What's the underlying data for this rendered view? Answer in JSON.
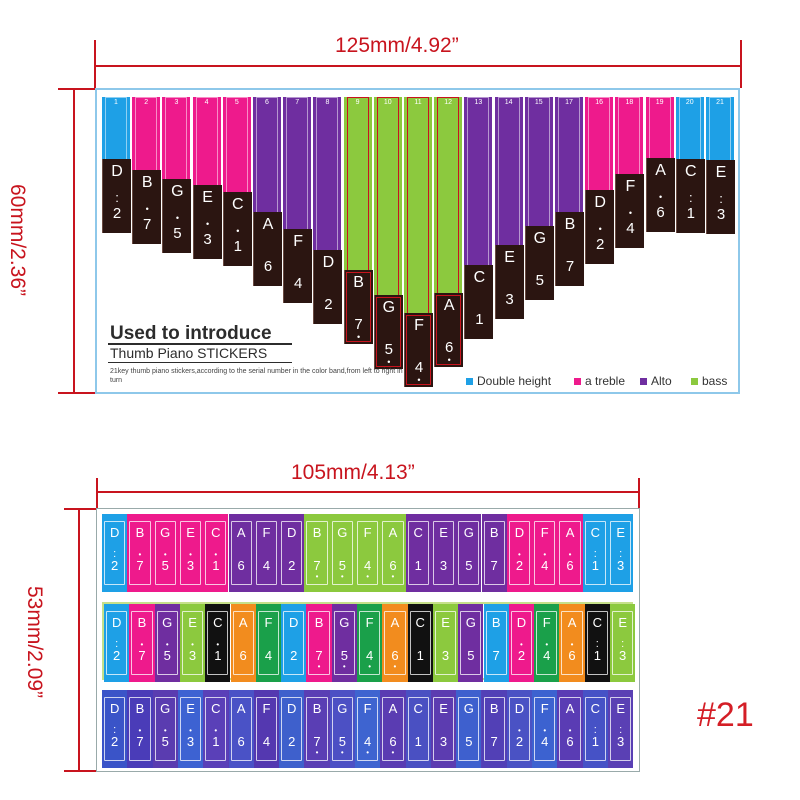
{
  "dimensions": {
    "top_width": "125mm/4.92”",
    "top_height": "60mm/2.36”",
    "bottom_width": "105mm/4.13”",
    "bottom_height": "53mm/2.09”"
  },
  "colors": {
    "double_height": "#1ea0e6",
    "treble": "#ee1a8c",
    "alto": "#6f2ea0",
    "bass": "#8cc93e",
    "dimension": "#c8141e"
  },
  "top_sticker": {
    "title": "Used to introduce",
    "subtitle": "Thumb Piano STICKERS",
    "description": "21key thumb piano stickers,according to the serial number in the color band,from left to right in turn",
    "legend": [
      {
        "label": "Double height",
        "color": "#1ea0e6"
      },
      {
        "label": "a treble",
        "color": "#ee1a8c"
      },
      {
        "label": "Alto",
        "color": "#6f2ea0"
      },
      {
        "label": "bass",
        "color": "#8cc93e"
      }
    ],
    "keys": [
      {
        "num": "1",
        "letter": "D",
        "digit": "2",
        "dots": 2,
        "dotpos": "top",
        "group": "double_height"
      },
      {
        "num": "2",
        "letter": "B",
        "digit": "7",
        "dots": 1,
        "dotpos": "top",
        "group": "treble"
      },
      {
        "num": "3",
        "letter": "G",
        "digit": "5",
        "dots": 1,
        "dotpos": "top",
        "group": "treble"
      },
      {
        "num": "4",
        "letter": "E",
        "digit": "3",
        "dots": 1,
        "dotpos": "top",
        "group": "treble"
      },
      {
        "num": "5",
        "letter": "C",
        "digit": "1",
        "dots": 1,
        "dotpos": "top",
        "group": "treble"
      },
      {
        "num": "6",
        "letter": "A",
        "digit": "6",
        "dots": 0,
        "dotpos": "none",
        "group": "alto"
      },
      {
        "num": "7",
        "letter": "F",
        "digit": "4",
        "dots": 0,
        "dotpos": "none",
        "group": "alto"
      },
      {
        "num": "8",
        "letter": "D",
        "digit": "2",
        "dots": 0,
        "dotpos": "none",
        "group": "alto"
      },
      {
        "num": "9",
        "letter": "B",
        "digit": "7",
        "dots": 1,
        "dotpos": "bottom",
        "group": "bass"
      },
      {
        "num": "10",
        "letter": "G",
        "digit": "5",
        "dots": 1,
        "dotpos": "bottom",
        "group": "bass"
      },
      {
        "num": "11",
        "letter": "F",
        "digit": "4",
        "dots": 1,
        "dotpos": "bottom",
        "group": "bass"
      },
      {
        "num": "12",
        "letter": "A",
        "digit": "6",
        "dots": 1,
        "dotpos": "bottom",
        "group": "bass"
      },
      {
        "num": "13",
        "letter": "C",
        "digit": "1",
        "dots": 0,
        "dotpos": "none",
        "group": "alto"
      },
      {
        "num": "14",
        "letter": "E",
        "digit": "3",
        "dots": 0,
        "dotpos": "none",
        "group": "alto"
      },
      {
        "num": "15",
        "letter": "G",
        "digit": "5",
        "dots": 0,
        "dotpos": "none",
        "group": "alto"
      },
      {
        "num": "17",
        "letter": "B",
        "digit": "7",
        "dots": 0,
        "dotpos": "none",
        "group": "alto"
      },
      {
        "num": "16",
        "letter": "D",
        "digit": "2",
        "dots": 1,
        "dotpos": "top",
        "group": "treble"
      },
      {
        "num": "18",
        "letter": "F",
        "digit": "4",
        "dots": 1,
        "dotpos": "top",
        "group": "treble"
      },
      {
        "num": "19",
        "letter": "A",
        "digit": "6",
        "dots": 1,
        "dotpos": "top",
        "group": "treble"
      },
      {
        "num": "20",
        "letter": "C",
        "digit": "1",
        "dots": 2,
        "dotpos": "top",
        "group": "double_height"
      },
      {
        "num": "21",
        "letter": "E",
        "digit": "3",
        "dots": 2,
        "dotpos": "top",
        "group": "double_height"
      }
    ]
  },
  "bottom_sticker": {
    "notes": [
      {
        "letter": "D",
        "digit": "2",
        "dots": 2,
        "dotpos": "top"
      },
      {
        "letter": "B",
        "digit": "7",
        "dots": 1,
        "dotpos": "top"
      },
      {
        "letter": "G",
        "digit": "5",
        "dots": 1,
        "dotpos": "top"
      },
      {
        "letter": "E",
        "digit": "3",
        "dots": 1,
        "dotpos": "top"
      },
      {
        "letter": "C",
        "digit": "1",
        "dots": 1,
        "dotpos": "top"
      },
      {
        "letter": "A",
        "digit": "6",
        "dots": 0,
        "dotpos": "none"
      },
      {
        "letter": "F",
        "digit": "4",
        "dots": 0,
        "dotpos": "none"
      },
      {
        "letter": "D",
        "digit": "2",
        "dots": 0,
        "dotpos": "none"
      },
      {
        "letter": "B",
        "digit": "7",
        "dots": 1,
        "dotpos": "bottom"
      },
      {
        "letter": "G",
        "digit": "5",
        "dots": 1,
        "dotpos": "bottom"
      },
      {
        "letter": "F",
        "digit": "4",
        "dots": 1,
        "dotpos": "bottom"
      },
      {
        "letter": "A",
        "digit": "6",
        "dots": 1,
        "dotpos": "bottom"
      },
      {
        "letter": "C",
        "digit": "1",
        "dots": 0,
        "dotpos": "none"
      },
      {
        "letter": "E",
        "digit": "3",
        "dots": 0,
        "dotpos": "none"
      },
      {
        "letter": "G",
        "digit": "5",
        "dots": 0,
        "dotpos": "none"
      },
      {
        "letter": "B",
        "digit": "7",
        "dots": 0,
        "dotpos": "none"
      },
      {
        "letter": "D",
        "digit": "2",
        "dots": 1,
        "dotpos": "top"
      },
      {
        "letter": "F",
        "digit": "4",
        "dots": 1,
        "dotpos": "top"
      },
      {
        "letter": "A",
        "digit": "6",
        "dots": 1,
        "dotpos": "top"
      },
      {
        "letter": "C",
        "digit": "1",
        "dots": 2,
        "dotpos": "top"
      },
      {
        "letter": "E",
        "digit": "3",
        "dots": 2,
        "dotpos": "top"
      }
    ],
    "strip1_colors": [
      "#1ea0e6",
      "#ee1a8c",
      "#ee1a8c",
      "#ee1a8c",
      "#ee1a8c",
      "#6f2ea0",
      "#6f2ea0",
      "#6f2ea0",
      "#8cc93e",
      "#8cc93e",
      "#8cc93e",
      "#8cc93e",
      "#6f2ea0",
      "#6f2ea0",
      "#6f2ea0",
      "#6f2ea0",
      "#ee1a8c",
      "#ee1a8c",
      "#ee1a8c",
      "#1ea0e6",
      "#1ea0e6"
    ],
    "strip2_colors": [
      "#1ea0e6",
      "#ee1a8c",
      "#6f2ea0",
      "#8cc93e",
      "#111111",
      "#f28c1e",
      "#1aa04a",
      "#1ea0e6",
      "#ee1a8c",
      "#6f2ea0",
      "#1aa04a",
      "#f28c1e",
      "#111111",
      "#8cc93e",
      "#6f2ea0",
      "#1ea0e6",
      "#ee1a8c",
      "#1aa04a",
      "#f28c1e",
      "#111111",
      "#8cc93e"
    ],
    "strip3_colors": [
      "#3a54c8",
      "#4a3cb8",
      "#5a3cb0",
      "#3d62d2",
      "#5a40b8",
      "#4a52c6",
      "#5438b0",
      "#3e60cc",
      "#5a3eb4",
      "#4c50c4",
      "#3e64d0",
      "#5a3cb2",
      "#4a50c2",
      "#5c3cb0",
      "#3e60ce",
      "#5240b6",
      "#4a52c4",
      "#3c62d0",
      "#5a3cb4",
      "#4652c6",
      "#5a40b4"
    ]
  },
  "variant_label": "#21"
}
